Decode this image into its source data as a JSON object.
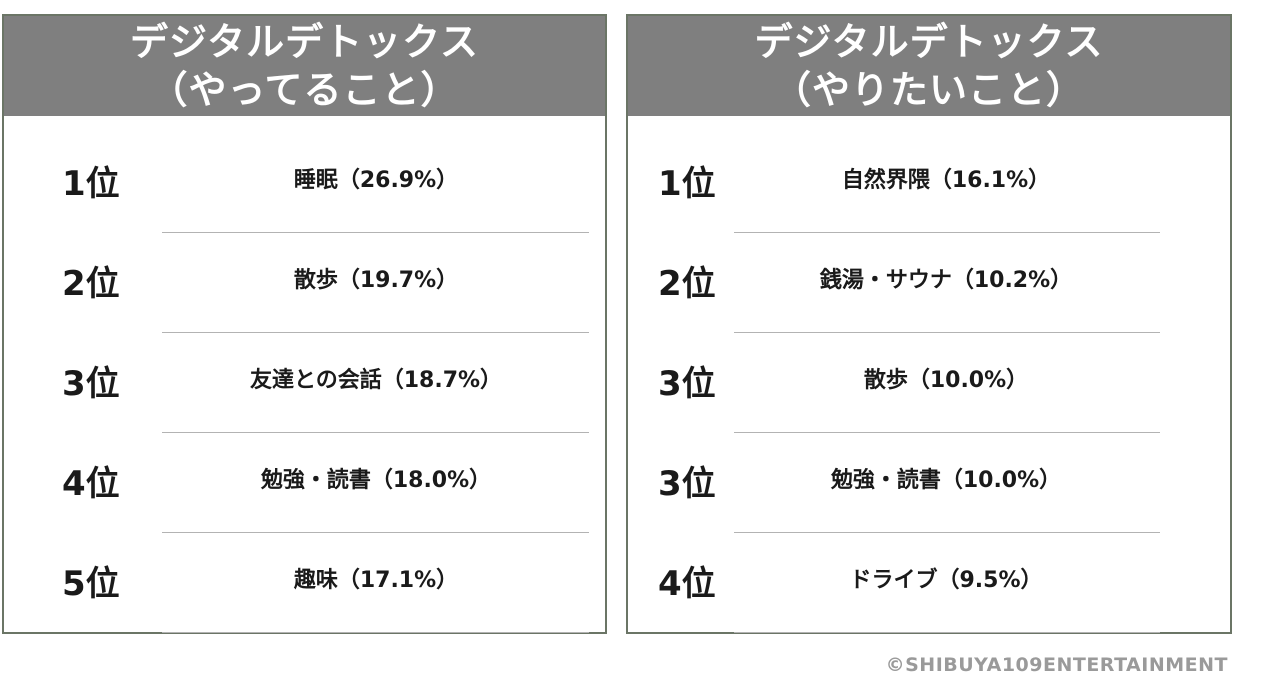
{
  "chart_data": [
    {
      "type": "table",
      "title_line1": "デジタルデトックス",
      "title_line2": "（やってること）",
      "rows": [
        {
          "rank": "1位",
          "item": "睡眠（26.9%）",
          "label": "睡眠",
          "value": 26.9
        },
        {
          "rank": "2位",
          "item": "散歩（19.7%）",
          "label": "散歩",
          "value": 19.7
        },
        {
          "rank": "3位",
          "item": "友達との会話（18.7%）",
          "label": "友達との会話",
          "value": 18.7
        },
        {
          "rank": "4位",
          "item": "勉強・読書（18.0%）",
          "label": "勉強・読書",
          "value": 18.0
        },
        {
          "rank": "5位",
          "item": "趣味（17.1%）",
          "label": "趣味",
          "value": 17.1
        }
      ]
    },
    {
      "type": "table",
      "title_line1": "デジタルデトックス",
      "title_line2": "（やりたいこと）",
      "rows": [
        {
          "rank": "1位",
          "item": "自然界隈（16.1%）",
          "label": "自然界隈",
          "value": 16.1
        },
        {
          "rank": "2位",
          "item": "銭湯・サウナ（10.2%）",
          "label": "銭湯・サウナ",
          "value": 10.2
        },
        {
          "rank": "3位",
          "item": "散歩（10.0%）",
          "label": "散歩",
          "value": 10.0
        },
        {
          "rank": "3位",
          "item": "勉強・読書（10.0%）",
          "label": "勉強・読書",
          "value": 10.0
        },
        {
          "rank": "4位",
          "item": "ドライブ（9.5%）",
          "label": "ドライブ",
          "value": 9.5
        }
      ]
    }
  ],
  "colors": {
    "header_bg": "#7f7f7f",
    "header_text": "#ffffff",
    "panel_border": "#6b7566",
    "rule": "#b3b3b3",
    "copyright": "#9a9a9a"
  },
  "copyright": "©SHIBUYA109ENTERTAINMENT"
}
